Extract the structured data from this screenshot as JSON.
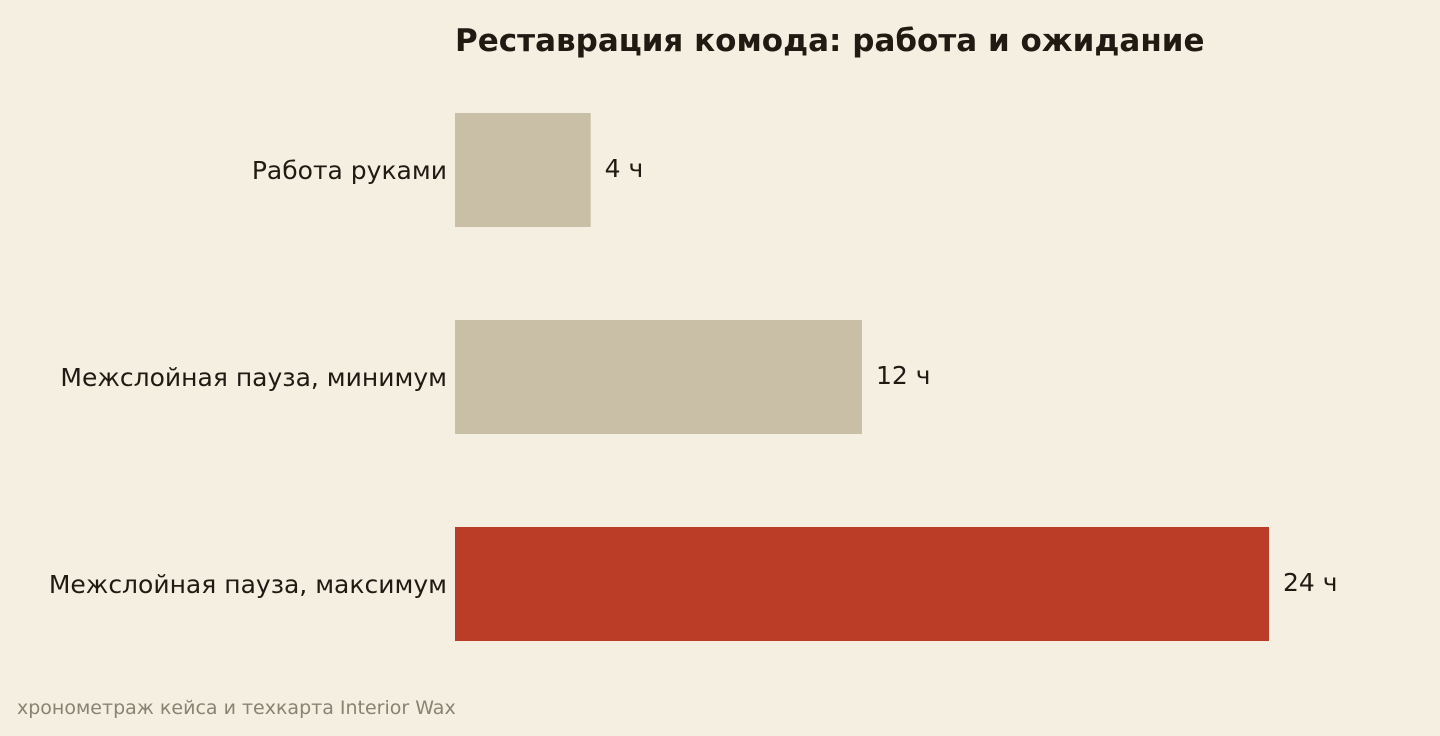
{
  "chart_data": {
    "type": "bar",
    "orientation": "horizontal",
    "title": "Реставрация комода: работа и ожидание",
    "categories": [
      "Работа руками",
      "Межслойная пауза, минимум",
      "Межслойная пауза, максимум"
    ],
    "values": [
      4,
      12,
      24
    ],
    "value_labels": [
      "4 ч",
      "12 ч",
      "24 ч"
    ],
    "bar_colors": [
      "#c9bfa7",
      "#c9bfa7",
      "#bc3d27"
    ],
    "xlim": [
      0,
      24
    ],
    "grid": false,
    "xlabel": "",
    "ylabel": ""
  },
  "source": "хронометраж кейса и техкарта Interior Wax",
  "colors": {
    "background": "#f5efe2",
    "muted_bar": "#c9bfa7",
    "accent_bar": "#bc3d27",
    "text": "#1f1a12",
    "source_text": "#8a8272"
  }
}
